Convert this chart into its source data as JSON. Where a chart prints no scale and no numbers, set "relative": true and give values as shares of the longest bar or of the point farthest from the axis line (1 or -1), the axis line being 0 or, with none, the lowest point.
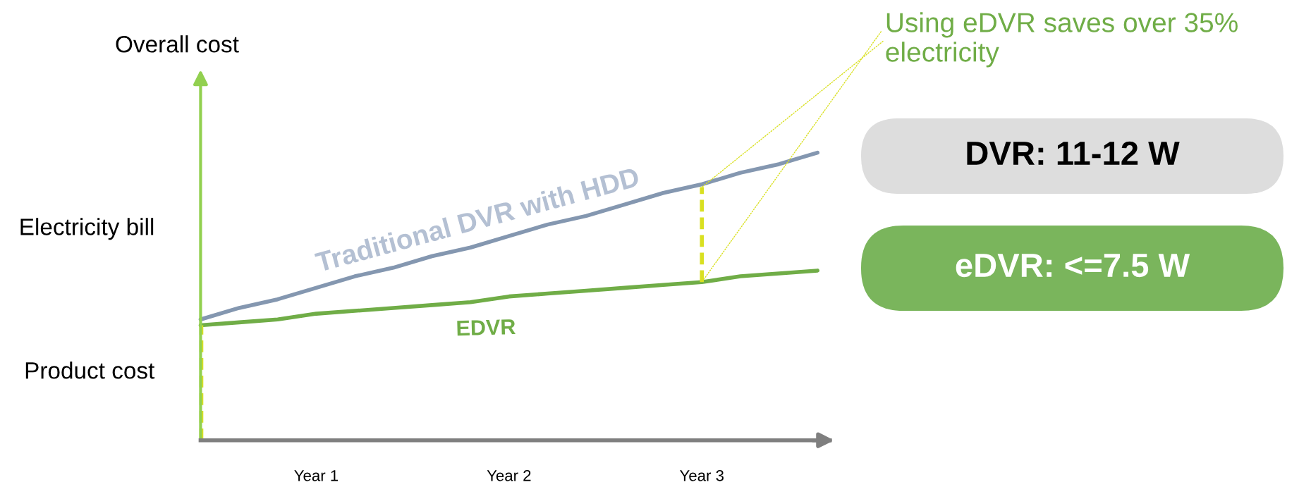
{
  "chart_data": {
    "type": "line",
    "relative": true,
    "ylabel": "Overall cost",
    "categories": [
      null,
      null,
      null,
      "Year 1",
      null,
      null,
      null,
      null,
      "Year 2",
      null,
      null,
      null,
      null,
      "Year 3",
      null,
      null,
      null
    ],
    "series": [
      {
        "name": "Traditional DVR with HDD",
        "color": "#8497b0",
        "values": [
          0.42,
          0.46,
          0.49,
          0.53,
          0.57,
          0.6,
          0.64,
          0.67,
          0.71,
          0.75,
          0.78,
          0.82,
          0.86,
          0.89,
          0.93,
          0.96,
          1.0
        ]
      },
      {
        "name": "EDVR",
        "color": "#70ad47",
        "values": [
          0.4,
          0.41,
          0.42,
          0.44,
          0.45,
          0.46,
          0.47,
          0.48,
          0.5,
          0.51,
          0.52,
          0.53,
          0.54,
          0.55,
          0.57,
          0.58,
          0.59
        ]
      }
    ],
    "annotations": [
      {
        "text": "Using eDVR saves over 35% electricity",
        "x": "Year 3",
        "y": 0.88
      },
      "Electricity bill",
      "Product cost",
      "DVR: 11-12 W",
      "eDVR: <=7.5 W"
    ]
  }
}
